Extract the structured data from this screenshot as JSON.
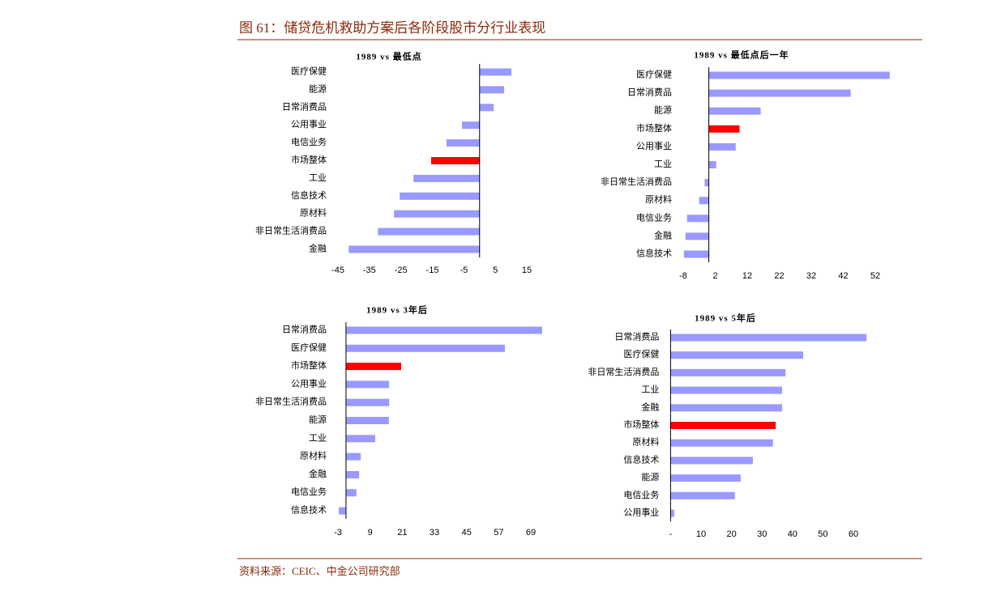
{
  "header": {
    "title": "图 61：储贷危机救助方案后各阶段股市分行业表现"
  },
  "source": "资料来源：CEIC、中金公司研究部",
  "chart_data": [
    {
      "type": "bar",
      "orientation": "horizontal",
      "title": "1989 vs 最低点",
      "categories": [
        "医疗保健",
        "能源",
        "日常消费品",
        "公用事业",
        "电信业务",
        "市场整体",
        "工业",
        "信息技术",
        "原材料",
        "非日常生活消费品",
        "金融"
      ],
      "values": [
        10.1,
        7.8,
        4.5,
        -5.6,
        -10.5,
        -15.4,
        -21,
        -25.4,
        -27.2,
        -32.3,
        -41.6
      ],
      "colors": [
        "#9999ff",
        "#9999ff",
        "#9999ff",
        "#9999ff",
        "#9999ff",
        "#ff0000",
        "#9999ff",
        "#9999ff",
        "#9999ff",
        "#9999ff",
        "#9999ff"
      ],
      "xlim": [
        -45,
        15
      ],
      "xticks": [
        -45,
        -35,
        -25,
        -15,
        -5,
        5,
        15
      ]
    },
    {
      "type": "bar",
      "orientation": "horizontal",
      "title": "1989 vs 最低点后一年",
      "categories": [
        "医疗保健",
        "日常消费品",
        "能源",
        "市场整体",
        "公用事业",
        "工业",
        "非日常生活消费品",
        "原材料",
        "电信业务",
        "金融",
        "信息技术"
      ],
      "values": [
        56.5,
        44.3,
        16.2,
        9.6,
        8.4,
        2.3,
        -1.3,
        -3,
        -6.8,
        -7.3,
        -7.8
      ],
      "colors": [
        "#9999ff",
        "#9999ff",
        "#9999ff",
        "#ff0000",
        "#9999ff",
        "#9999ff",
        "#9999ff",
        "#9999ff",
        "#9999ff",
        "#9999ff",
        "#9999ff"
      ],
      "xlim": [
        -8,
        58
      ],
      "xticks": [
        -8,
        2,
        12,
        22,
        32,
        42,
        52
      ]
    },
    {
      "type": "bar",
      "orientation": "horizontal",
      "title": "1989 vs 3年后",
      "categories": [
        "日常消费品",
        "医疗保健",
        "市场整体",
        "公用事业",
        "非日常生活消费品",
        "能源",
        "工业",
        "原材料",
        "金融",
        "电信业务",
        "信息技术"
      ],
      "values": [
        73.2,
        59.3,
        20.6,
        16.1,
        16.1,
        16,
        10.9,
        5.5,
        4.9,
        3.9,
        -2.7
      ],
      "colors": [
        "#9999ff",
        "#9999ff",
        "#ff0000",
        "#9999ff",
        "#9999ff",
        "#9999ff",
        "#9999ff",
        "#9999ff",
        "#9999ff",
        "#9999ff",
        "#9999ff"
      ],
      "xlim": [
        -3,
        75
      ],
      "xticks": [
        -3,
        9,
        21,
        33,
        45,
        57,
        69
      ]
    },
    {
      "type": "bar",
      "orientation": "horizontal",
      "title": "1989 vs 5年后",
      "categories": [
        "日常消费品",
        "医疗保健",
        "非日常生活消费品",
        "工业",
        "金融",
        "市场整体",
        "原材料",
        "信息技术",
        "能源",
        "电信业务",
        "公用事业"
      ],
      "values": [
        64.3,
        43.5,
        37.7,
        36.6,
        36.6,
        34.5,
        33.6,
        27,
        23,
        21.1,
        1.2
      ],
      "colors": [
        "#9999ff",
        "#9999ff",
        "#9999ff",
        "#9999ff",
        "#9999ff",
        "#ff0000",
        "#9999ff",
        "#9999ff",
        "#9999ff",
        "#9999ff",
        "#9999ff"
      ],
      "xlim": [
        0,
        66
      ],
      "xticks": [
        {
          "value": 0,
          "label": "-"
        },
        10,
        20,
        30,
        40,
        50,
        60
      ]
    }
  ]
}
